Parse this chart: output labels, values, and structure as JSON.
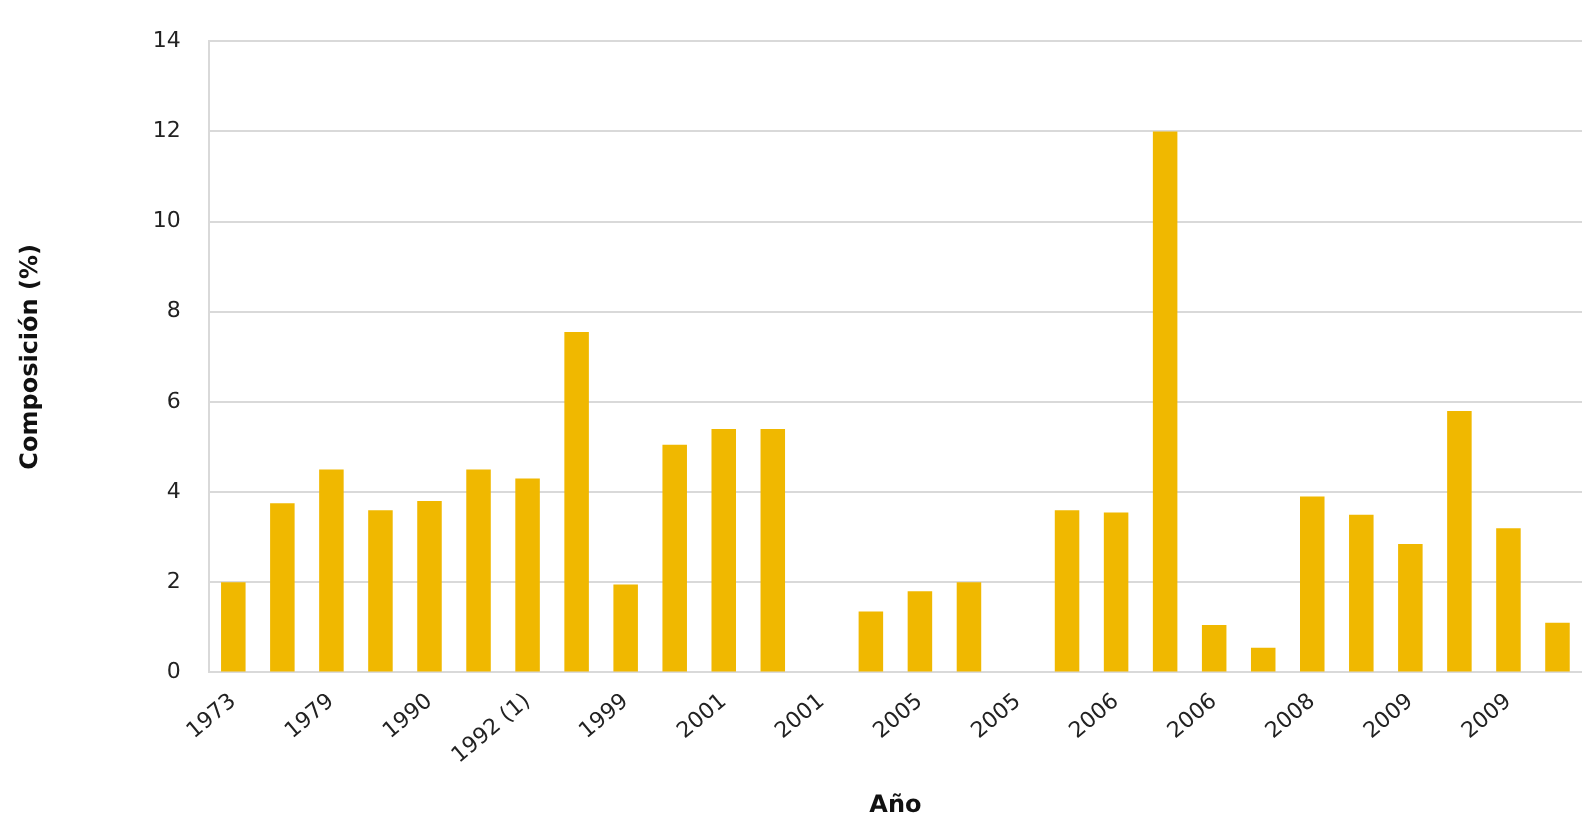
{
  "chart_data": {
    "type": "bar",
    "xlabel": "Año",
    "ylabel": "Composición (%)",
    "categories": [
      "1973",
      null,
      "1979",
      null,
      "1990",
      null,
      "1992 (1)",
      null,
      "1999",
      null,
      "2001",
      null,
      "2001",
      null,
      "2005",
      null,
      "2005",
      null,
      "2006",
      null,
      "2006",
      null,
      "2008",
      null,
      "2009",
      null,
      "2009",
      null
    ],
    "values": [
      2.0,
      3.75,
      4.5,
      3.6,
      3.8,
      4.5,
      4.3,
      7.55,
      1.95,
      5.05,
      5.4,
      5.4,
      null,
      1.35,
      1.8,
      2.0,
      null,
      3.6,
      3.55,
      12.0,
      1.05,
      0.55,
      3.9,
      3.5,
      2.85,
      5.8,
      3.2,
      1.1
    ],
    "color": "#f0b800",
    "ylim": [
      0,
      14
    ],
    "yticks": [
      0,
      2,
      4,
      6,
      8,
      10,
      12,
      14
    ],
    "grid": "y",
    "legend": false
  }
}
